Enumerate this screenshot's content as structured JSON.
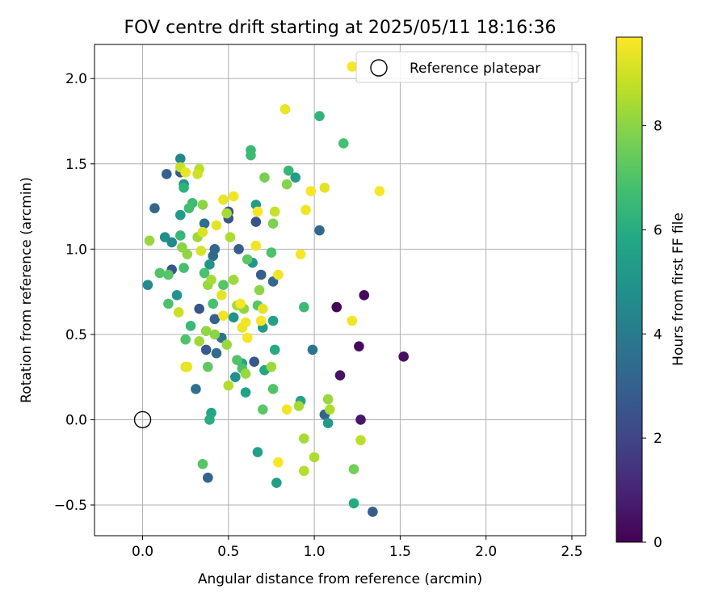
{
  "chart_data": {
    "type": "scatter",
    "title": "FOV centre drift starting at 2025/05/11 18:16:36",
    "xlabel": "Angular distance from reference (arcmin)",
    "ylabel": "Rotation from reference (arcmin)",
    "xlim": [
      -0.28,
      2.58
    ],
    "ylim": [
      -0.68,
      2.2
    ],
    "xticks": [
      0.0,
      0.5,
      1.0,
      1.5,
      2.0,
      2.5
    ],
    "xtick_labels": [
      "0.0",
      "0.5",
      "1.0",
      "1.5",
      "2.0",
      "2.5"
    ],
    "yticks": [
      -0.5,
      0.0,
      0.5,
      1.0,
      1.5,
      2.0
    ],
    "ytick_labels": [
      "−0.5",
      "0.0",
      "0.5",
      "1.0",
      "1.5",
      "2.0"
    ],
    "grid": true,
    "colormap": "viridis",
    "colorbar": {
      "label": "Hours from first FF file",
      "range": [
        0,
        9.7
      ],
      "ticks": [
        0,
        2,
        4,
        6,
        8
      ],
      "tick_labels": [
        "0",
        "2",
        "4",
        "6",
        "8"
      ]
    },
    "legend": {
      "position": "top-right",
      "entries": [
        {
          "label": "Reference platepar",
          "marker": "open-circle"
        }
      ]
    },
    "reference_point": {
      "x": 0.0,
      "y": 0.0
    },
    "points": [
      {
        "x": 1.13,
        "y": 0.66,
        "h": 0.1
      },
      {
        "x": 1.29,
        "y": 0.73,
        "h": 0.2
      },
      {
        "x": 1.26,
        "y": 0.43,
        "h": 0.3
      },
      {
        "x": 1.52,
        "y": 0.37,
        "h": 0.4
      },
      {
        "x": 1.15,
        "y": 0.26,
        "h": 0.5
      },
      {
        "x": 1.27,
        "y": 0.0,
        "h": 0.6
      },
      {
        "x": 1.34,
        "y": -0.54,
        "h": 2.8
      },
      {
        "x": 1.06,
        "y": 0.03,
        "h": 3.1
      },
      {
        "x": 1.03,
        "y": 1.11,
        "h": 3.3
      },
      {
        "x": 0.07,
        "y": 1.24,
        "h": 3.2
      },
      {
        "x": 0.14,
        "y": 1.44,
        "h": 3.0
      },
      {
        "x": 0.22,
        "y": 1.45,
        "h": 2.8
      },
      {
        "x": 0.17,
        "y": 0.88,
        "h": 2.6
      },
      {
        "x": 0.33,
        "y": 0.65,
        "h": 2.5
      },
      {
        "x": 0.37,
        "y": 0.41,
        "h": 2.7
      },
      {
        "x": 0.42,
        "y": 0.59,
        "h": 3.0
      },
      {
        "x": 0.42,
        "y": 1.0,
        "h": 3.2
      },
      {
        "x": 0.41,
        "y": 0.96,
        "h": 3.3
      },
      {
        "x": 0.5,
        "y": 1.22,
        "h": 2.4
      },
      {
        "x": 0.5,
        "y": 1.18,
        "h": 2.6
      },
      {
        "x": 0.56,
        "y": 1.0,
        "h": 2.9
      },
      {
        "x": 0.66,
        "y": 1.16,
        "h": 2.5
      },
      {
        "x": 0.69,
        "y": 0.85,
        "h": 2.9
      },
      {
        "x": 0.65,
        "y": 0.34,
        "h": 2.6
      },
      {
        "x": 0.38,
        "y": -0.34,
        "h": 3.1
      },
      {
        "x": 0.31,
        "y": 0.18,
        "h": 3.6
      },
      {
        "x": 0.43,
        "y": 0.39,
        "h": 3.4
      },
      {
        "x": 0.46,
        "y": 0.48,
        "h": 3.7
      },
      {
        "x": 0.36,
        "y": 1.15,
        "h": 3.5
      },
      {
        "x": 0.76,
        "y": 0.81,
        "h": 3.3
      },
      {
        "x": 0.99,
        "y": 0.41,
        "h": 3.8
      },
      {
        "x": 0.03,
        "y": 0.79,
        "h": 4.5
      },
      {
        "x": 0.13,
        "y": 1.07,
        "h": 4.8
      },
      {
        "x": 0.17,
        "y": 1.04,
        "h": 4.6
      },
      {
        "x": 0.22,
        "y": 1.53,
        "h": 4.4
      },
      {
        "x": 0.24,
        "y": 1.38,
        "h": 5.0
      },
      {
        "x": 0.22,
        "y": 1.2,
        "h": 5.3
      },
      {
        "x": 0.2,
        "y": 0.73,
        "h": 5.0
      },
      {
        "x": 0.39,
        "y": 0.91,
        "h": 5.0
      },
      {
        "x": 0.53,
        "y": 0.6,
        "h": 4.9
      },
      {
        "x": 0.54,
        "y": 0.25,
        "h": 4.8
      },
      {
        "x": 0.64,
        "y": 0.92,
        "h": 5.0
      },
      {
        "x": 0.66,
        "y": 1.26,
        "h": 5.3
      },
      {
        "x": 0.7,
        "y": 0.54,
        "h": 5.2
      },
      {
        "x": 0.76,
        "y": 0.58,
        "h": 5.5
      },
      {
        "x": 0.89,
        "y": 1.42,
        "h": 5.4
      },
      {
        "x": 0.92,
        "y": 0.11,
        "h": 5.6
      },
      {
        "x": 1.08,
        "y": -0.02,
        "h": 5.2
      },
      {
        "x": 0.67,
        "y": -0.19,
        "h": 5.5
      },
      {
        "x": 0.78,
        "y": -0.37,
        "h": 5.4
      },
      {
        "x": 1.23,
        "y": -0.49,
        "h": 5.9
      },
      {
        "x": 0.4,
        "y": 0.04,
        "h": 5.7
      },
      {
        "x": 0.39,
        "y": 0.0,
        "h": 6.0
      },
      {
        "x": 0.6,
        "y": 0.16,
        "h": 5.6
      },
      {
        "x": 0.58,
        "y": 0.33,
        "h": 5.7
      },
      {
        "x": 0.71,
        "y": 0.29,
        "h": 5.8
      },
      {
        "x": 0.77,
        "y": 0.41,
        "h": 5.9
      },
      {
        "x": 1.03,
        "y": 1.78,
        "h": 6.3
      },
      {
        "x": 0.85,
        "y": 1.46,
        "h": 6.4
      },
      {
        "x": 0.63,
        "y": 1.58,
        "h": 6.5
      },
      {
        "x": 0.63,
        "y": 1.55,
        "h": 6.6
      },
      {
        "x": 1.17,
        "y": 1.62,
        "h": 6.8
      },
      {
        "x": 0.94,
        "y": 0.66,
        "h": 6.6
      },
      {
        "x": 0.24,
        "y": 1.36,
        "h": 6.2
      },
      {
        "x": 0.22,
        "y": 1.08,
        "h": 6.4
      },
      {
        "x": 0.29,
        "y": 1.27,
        "h": 6.6
      },
      {
        "x": 0.27,
        "y": 1.24,
        "h": 6.7
      },
      {
        "x": 0.28,
        "y": 0.55,
        "h": 6.5
      },
      {
        "x": 0.24,
        "y": 0.89,
        "h": 6.8
      },
      {
        "x": 0.15,
        "y": 0.68,
        "h": 6.9
      },
      {
        "x": 0.1,
        "y": 0.86,
        "h": 7.0
      },
      {
        "x": 0.15,
        "y": 0.85,
        "h": 7.1
      },
      {
        "x": 0.25,
        "y": 0.47,
        "h": 7.0
      },
      {
        "x": 0.36,
        "y": 0.86,
        "h": 6.9
      },
      {
        "x": 0.41,
        "y": 0.68,
        "h": 6.8
      },
      {
        "x": 0.47,
        "y": 0.79,
        "h": 7.1
      },
      {
        "x": 0.55,
        "y": 0.35,
        "h": 7.0
      },
      {
        "x": 0.58,
        "y": 0.3,
        "h": 6.9
      },
      {
        "x": 0.61,
        "y": 0.94,
        "h": 7.2
      },
      {
        "x": 0.67,
        "y": 0.67,
        "h": 7.1
      },
      {
        "x": 0.75,
        "y": 0.98,
        "h": 6.9
      },
      {
        "x": 0.7,
        "y": 0.06,
        "h": 7.2
      },
      {
        "x": 0.76,
        "y": 0.18,
        "h": 7.0
      },
      {
        "x": 0.35,
        "y": -0.26,
        "h": 7.1
      },
      {
        "x": 0.38,
        "y": 0.31,
        "h": 7.3
      },
      {
        "x": 1.23,
        "y": -0.29,
        "h": 7.6
      },
      {
        "x": 0.71,
        "y": 1.42,
        "h": 7.7
      },
      {
        "x": 0.84,
        "y": 1.38,
        "h": 7.9
      },
      {
        "x": 0.76,
        "y": 1.15,
        "h": 7.8
      },
      {
        "x": 0.68,
        "y": 0.76,
        "h": 8.0
      },
      {
        "x": 0.04,
        "y": 1.05,
        "h": 8.2
      },
      {
        "x": 0.23,
        "y": 1.01,
        "h": 8.0
      },
      {
        "x": 0.26,
        "y": 0.97,
        "h": 8.1
      },
      {
        "x": 0.32,
        "y": 1.07,
        "h": 8.3
      },
      {
        "x": 0.35,
        "y": 1.26,
        "h": 8.0
      },
      {
        "x": 0.38,
        "y": 0.79,
        "h": 8.2
      },
      {
        "x": 0.4,
        "y": 0.82,
        "h": 8.4
      },
      {
        "x": 0.33,
        "y": 0.46,
        "h": 8.3
      },
      {
        "x": 0.37,
        "y": 0.52,
        "h": 8.1
      },
      {
        "x": 0.42,
        "y": 0.5,
        "h": 8.0
      },
      {
        "x": 0.49,
        "y": 0.44,
        "h": 8.2
      },
      {
        "x": 0.53,
        "y": 0.82,
        "h": 8.3
      },
      {
        "x": 0.55,
        "y": 0.67,
        "h": 8.4
      },
      {
        "x": 0.59,
        "y": 0.65,
        "h": 8.1
      },
      {
        "x": 0.51,
        "y": 1.07,
        "h": 8.5
      },
      {
        "x": 0.49,
        "y": 1.21,
        "h": 8.4
      },
      {
        "x": 0.6,
        "y": 0.27,
        "h": 8.2
      },
      {
        "x": 0.5,
        "y": 0.2,
        "h": 8.6
      },
      {
        "x": 0.75,
        "y": 0.31,
        "h": 8.3
      },
      {
        "x": 0.91,
        "y": 0.08,
        "h": 8.4
      },
      {
        "x": 1.08,
        "y": 0.12,
        "h": 8.2
      },
      {
        "x": 1.09,
        "y": 0.06,
        "h": 8.5
      },
      {
        "x": 0.94,
        "y": -0.11,
        "h": 8.4
      },
      {
        "x": 0.94,
        "y": -0.3,
        "h": 8.6
      },
      {
        "x": 1.0,
        "y": -0.22,
        "h": 8.5
      },
      {
        "x": 1.27,
        "y": -0.12,
        "h": 8.7
      },
      {
        "x": 0.22,
        "y": 1.48,
        "h": 8.8
      },
      {
        "x": 0.33,
        "y": 1.47,
        "h": 8.7
      },
      {
        "x": 0.32,
        "y": 1.44,
        "h": 9.0
      },
      {
        "x": 0.77,
        "y": 1.22,
        "h": 8.9
      },
      {
        "x": 0.21,
        "y": 0.63,
        "h": 8.9
      },
      {
        "x": 0.25,
        "y": 0.31,
        "h": 9.2
      },
      {
        "x": 0.26,
        "y": 0.31,
        "h": 9.4
      },
      {
        "x": 0.34,
        "y": 0.99,
        "h": 9.1
      },
      {
        "x": 0.35,
        "y": 1.1,
        "h": 9.2
      },
      {
        "x": 0.43,
        "y": 1.14,
        "h": 9.3
      },
      {
        "x": 0.47,
        "y": 1.29,
        "h": 9.4
      },
      {
        "x": 0.53,
        "y": 1.31,
        "h": 9.5
      },
      {
        "x": 0.46,
        "y": 0.73,
        "h": 9.3
      },
      {
        "x": 0.47,
        "y": 0.61,
        "h": 9.5
      },
      {
        "x": 0.57,
        "y": 0.68,
        "h": 9.6
      },
      {
        "x": 0.58,
        "y": 0.54,
        "h": 9.4
      },
      {
        "x": 0.6,
        "y": 0.57,
        "h": 9.5
      },
      {
        "x": 0.61,
        "y": 0.48,
        "h": 9.6
      },
      {
        "x": 0.66,
        "y": 1.02,
        "h": 9.5
      },
      {
        "x": 0.67,
        "y": 1.22,
        "h": 9.6
      },
      {
        "x": 0.7,
        "y": 0.65,
        "h": 9.3
      },
      {
        "x": 0.69,
        "y": 0.58,
        "h": 9.6
      },
      {
        "x": 0.79,
        "y": 0.85,
        "h": 9.5
      },
      {
        "x": 0.83,
        "y": 1.82,
        "h": 9.4
      },
      {
        "x": 0.95,
        "y": 1.23,
        "h": 9.5
      },
      {
        "x": 0.98,
        "y": 1.34,
        "h": 9.6
      },
      {
        "x": 1.06,
        "y": 1.36,
        "h": 9.3
      },
      {
        "x": 0.92,
        "y": 0.97,
        "h": 9.6
      },
      {
        "x": 0.84,
        "y": 0.06,
        "h": 9.5
      },
      {
        "x": 0.79,
        "y": -0.25,
        "h": 9.6
      },
      {
        "x": 1.22,
        "y": 0.58,
        "h": 9.5
      },
      {
        "x": 1.38,
        "y": 1.34,
        "h": 9.6
      },
      {
        "x": 1.22,
        "y": 2.07,
        "h": 9.6
      },
      {
        "x": 0.25,
        "y": 1.45,
        "h": 9.4
      }
    ]
  }
}
